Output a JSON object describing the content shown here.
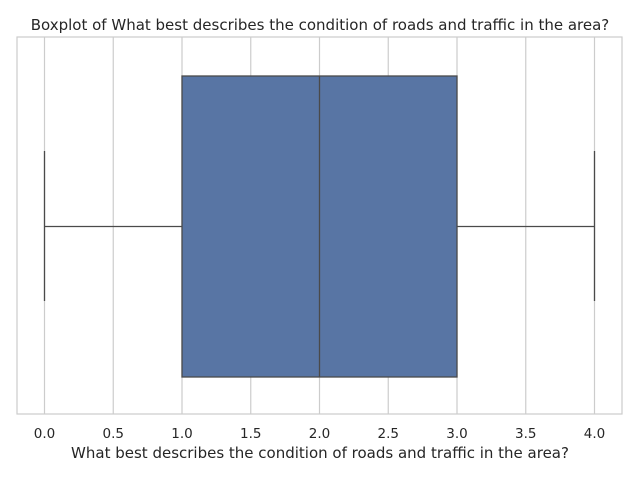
{
  "chart_data": {
    "type": "boxplot",
    "orientation": "horizontal",
    "title": "Boxplot of What best describes the condition of roads and traffic in the area?",
    "xlabel": "What best describes the condition of roads and traffic in the area?",
    "ylabel": "",
    "xlim": [
      -0.2,
      4.2
    ],
    "xticks": [
      0.0,
      0.5,
      1.0,
      1.5,
      2.0,
      2.5,
      3.0,
      3.5,
      4.0
    ],
    "xtick_labels": [
      "0.0",
      "0.5",
      "1.0",
      "1.5",
      "2.0",
      "2.5",
      "3.0",
      "3.5",
      "4.0"
    ],
    "grid": "vertical",
    "box": {
      "whisker_low": 0.0,
      "q1": 1.0,
      "median": 2.0,
      "q3": 3.0,
      "whisker_high": 4.0
    },
    "colors": {
      "box_fill": "#5875a4",
      "line": "#4a4a4a",
      "grid": "#cccccc",
      "frame": "#cccccc"
    }
  }
}
